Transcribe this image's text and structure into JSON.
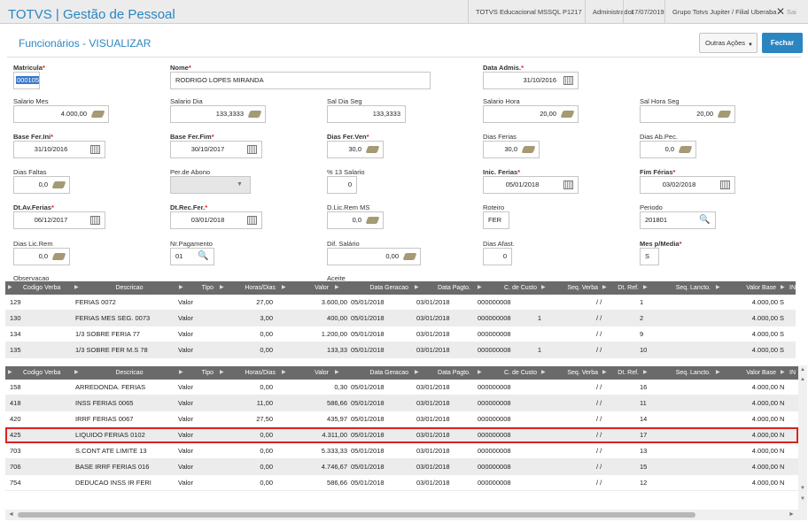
{
  "topbar": {
    "brand": "TOTVS | Gestão de Pessoal",
    "environment": "TOTVS Educacional MSSQL P1217",
    "user": "Administrador",
    "date": "17/07/2019",
    "branch": "Grupo Totvs Jupiter / Filial Uberaba",
    "close": "✕",
    "extra": "Sai"
  },
  "header": {
    "title": "Funcionários - VISUALIZAR",
    "more_actions": "Outras Ações",
    "close_button": "Fechar"
  },
  "form": {
    "matricula": {
      "label": "Matricula",
      "value": "000105"
    },
    "nome": {
      "label": "Nome",
      "value": "RODRIGO LOPES MIRANDA"
    },
    "data_admis": {
      "label": "Data Admis.",
      "value": "31/10/2016"
    },
    "salario_mes": {
      "label": "Salario Mes",
      "value": "4.000,00"
    },
    "salario_dia": {
      "label": "Salario Dia",
      "value": "133,3333"
    },
    "sal_dia_seg": {
      "label": "Sal Dia Seg",
      "value": "133,3333"
    },
    "salario_hora": {
      "label": "Salario Hora",
      "value": "20,00"
    },
    "sal_hora_seg": {
      "label": "Sal Hora Seg",
      "value": "20,00"
    },
    "base_fer_ini": {
      "label": "Base Fer.Ini",
      "value": "31/10/2016"
    },
    "base_fer_fim": {
      "label": "Base Fer.Fim",
      "value": "30/10/2017"
    },
    "dias_fer_ven": {
      "label": "Dias Fer.Ven",
      "value": "30,0"
    },
    "dias_ferias": {
      "label": "Dias Ferias",
      "value": "30,0"
    },
    "dias_ab_pec": {
      "label": "Dias Ab.Pec.",
      "value": "0,0"
    },
    "dias_faltas": {
      "label": "Dias Faltas",
      "value": "0,0"
    },
    "per_abono": {
      "label": "Per.de Abono",
      "value": ""
    },
    "pct_13": {
      "label": "% 13 Salario",
      "value": "0"
    },
    "inic_ferias": {
      "label": "Inic. Ferias",
      "value": "05/01/2018"
    },
    "fim_ferias": {
      "label": "Fim Férias",
      "value": "03/02/2018"
    },
    "dt_av_ferias": {
      "label": "Dt.Av.Ferias",
      "value": "06/12/2017"
    },
    "dt_rec_fer": {
      "label": "Dt.Rec.Fer.",
      "value": "03/01/2018"
    },
    "d_lic_rem_ms": {
      "label": "D.Lic.Rem MS",
      "value": "0,0"
    },
    "roteiro": {
      "label": "Roteiro",
      "value": "FER"
    },
    "periodo": {
      "label": "Periodo",
      "value": "201801"
    },
    "dias_lic_rem": {
      "label": "Dias Lic.Rem",
      "value": "0,0"
    },
    "nr_pagamento": {
      "label": "Nr.Pagamento",
      "value": "01"
    },
    "dif_salario": {
      "label": "Dif. Salário",
      "value": "0,00"
    },
    "dias_afast": {
      "label": "Dias Afast.",
      "value": "0"
    },
    "mes_p_media": {
      "label": "Mes p/Media",
      "value": "S"
    },
    "observacao": {
      "label": "Observacao"
    },
    "aceite": {
      "label": "Aceite"
    }
  },
  "grid_headers": [
    "Codigo Verba",
    "Descricao",
    "Tipo",
    "Horas/Dias",
    "Valor",
    "Data Geracao",
    "Data Pagto.",
    "C. de Custo",
    "Seq. Verba",
    "Dt. Ref.",
    "Seq. Lancto.",
    "Valor Base",
    "IN"
  ],
  "grid1": {
    "rows": [
      {
        "codigo": "129",
        "descricao": "FERIAS 0072",
        "tipo": "Valor",
        "horas": "27,00",
        "valor": "3.600,00",
        "data_geracao": "05/01/2018",
        "data_pagto": "03/01/2018",
        "c_custo": "000000008",
        "seq_verba": "",
        "dt_ref": "/ /",
        "seq_lancto": "1",
        "valor_base": "4.000,00",
        "in": "S"
      },
      {
        "codigo": "130",
        "descricao": "FERIAS MES SEG. 0073",
        "tipo": "Valor",
        "horas": "3,00",
        "valor": "400,00",
        "data_geracao": "05/01/2018",
        "data_pagto": "03/01/2018",
        "c_custo": "000000008",
        "seq_verba": "1",
        "dt_ref": "/ /",
        "seq_lancto": "2",
        "valor_base": "4.000,00",
        "in": "S"
      },
      {
        "codigo": "134",
        "descricao": "1/3 SOBRE FERIA 77",
        "tipo": "Valor",
        "horas": "0,00",
        "valor": "1.200,00",
        "data_geracao": "05/01/2018",
        "data_pagto": "03/01/2018",
        "c_custo": "000000008",
        "seq_verba": "",
        "dt_ref": "/ /",
        "seq_lancto": "9",
        "valor_base": "4.000,00",
        "in": "S"
      },
      {
        "codigo": "135",
        "descricao": "1/3 SOBRE FER M.S 78",
        "tipo": "Valor",
        "horas": "0,00",
        "valor": "133,33",
        "data_geracao": "05/01/2018",
        "data_pagto": "03/01/2018",
        "c_custo": "000000008",
        "seq_verba": "1",
        "dt_ref": "/ /",
        "seq_lancto": "10",
        "valor_base": "4.000,00",
        "in": "S"
      }
    ]
  },
  "grid2": {
    "rows": [
      {
        "codigo": "158",
        "descricao": "ARREDONDA. FERIAS",
        "tipo": "Valor",
        "horas": "0,00",
        "valor": "0,30",
        "data_geracao": "05/01/2018",
        "data_pagto": "03/01/2018",
        "c_custo": "000000008",
        "seq_verba": "",
        "dt_ref": "/ /",
        "seq_lancto": "16",
        "valor_base": "4.000,00",
        "in": "N"
      },
      {
        "codigo": "418",
        "descricao": "INSS FERIAS 0065",
        "tipo": "Valor",
        "horas": "11,00",
        "valor": "586,66",
        "data_geracao": "05/01/2018",
        "data_pagto": "03/01/2018",
        "c_custo": "000000008",
        "seq_verba": "",
        "dt_ref": "/ /",
        "seq_lancto": "11",
        "valor_base": "4.000,00",
        "in": "N"
      },
      {
        "codigo": "420",
        "descricao": "IRRF FERIAS 0067",
        "tipo": "Valor",
        "horas": "27,50",
        "valor": "435,97",
        "data_geracao": "05/01/2018",
        "data_pagto": "03/01/2018",
        "c_custo": "000000008",
        "seq_verba": "",
        "dt_ref": "/ /",
        "seq_lancto": "14",
        "valor_base": "4.000,00",
        "in": "N"
      },
      {
        "codigo": "425",
        "descricao": "LIQUIDO FERIAS 0102",
        "tipo": "Valor",
        "horas": "0,00",
        "valor": "4.311,00",
        "data_geracao": "05/01/2018",
        "data_pagto": "03/01/2018",
        "c_custo": "000000008",
        "seq_verba": "",
        "dt_ref": "/ /",
        "seq_lancto": "17",
        "valor_base": "4.000,00",
        "in": "N"
      },
      {
        "codigo": "703",
        "descricao": "S.CONT ATE LIMITE 13",
        "tipo": "Valor",
        "horas": "0,00",
        "valor": "5.333,33",
        "data_geracao": "05/01/2018",
        "data_pagto": "03/01/2018",
        "c_custo": "000000008",
        "seq_verba": "",
        "dt_ref": "/ /",
        "seq_lancto": "13",
        "valor_base": "4.000,00",
        "in": "N"
      },
      {
        "codigo": "706",
        "descricao": "BASE IRRF FERIAS 016",
        "tipo": "Valor",
        "horas": "0,00",
        "valor": "4.746,67",
        "data_geracao": "05/01/2018",
        "data_pagto": "03/01/2018",
        "c_custo": "000000008",
        "seq_verba": "",
        "dt_ref": "/ /",
        "seq_lancto": "15",
        "valor_base": "4.000,00",
        "in": "N"
      },
      {
        "codigo": "754",
        "descricao": "DEDUCAO INSS IR FERI",
        "tipo": "Valor",
        "horas": "0,00",
        "valor": "586,66",
        "data_geracao": "05/01/2018",
        "data_pagto": "03/01/2018",
        "c_custo": "000000008",
        "seq_verba": "",
        "dt_ref": "/ /",
        "seq_lancto": "12",
        "valor_base": "4.000,00",
        "in": "N"
      }
    ]
  },
  "scrollbars": {
    "up": "▲",
    "down": "▼",
    "left": "◄",
    "right": "►"
  },
  "colors": {
    "accent": "#2b85c1",
    "grid_header": "#6a6a6a",
    "highlight": "#dd2222"
  }
}
